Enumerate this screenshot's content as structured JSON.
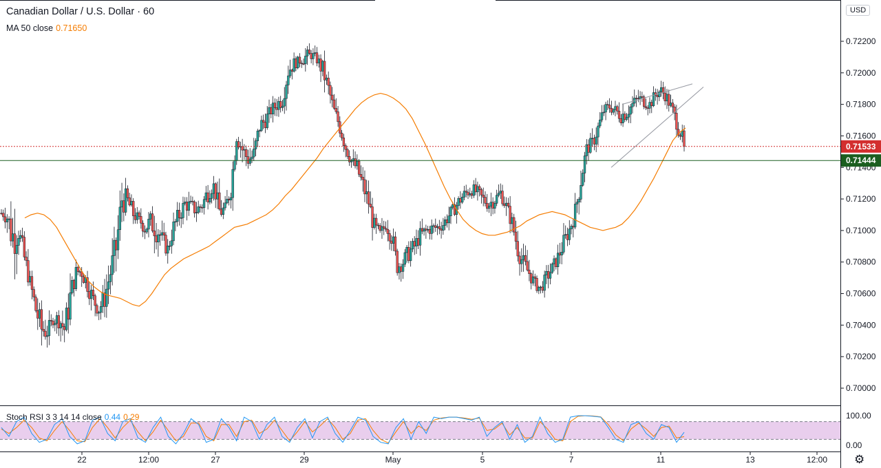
{
  "header": {
    "symbol_title": "Canadian Dollar / U.S. Dollar · 60",
    "ma_label": "MA 50 close",
    "ma_value": "0.71650",
    "stoch_label": "Stoch RSI 3 3 14 14 close",
    "stoch_k": "0.44",
    "stoch_d": "0.29",
    "currency_badge": "USD"
  },
  "icons": {
    "settings": "gear-icon"
  },
  "colors": {
    "up_candle": "#26a69a",
    "down_candle": "#ef5350",
    "ma_line": "#f57c00",
    "current_price_line": "#d32f2f",
    "support_line": "#1b5e20",
    "stoch_k": "#2196f3",
    "stoch_d": "#f57c00",
    "stoch_band": "#e1bee7"
  },
  "chart_data": {
    "type": "candlestick",
    "symbol": "CADUSD",
    "interval": "60",
    "y_axis_ticks": [
      "0.72200",
      "0.72000",
      "0.71800",
      "0.71600",
      "0.71400",
      "0.71200",
      "0.71000",
      "0.70800",
      "0.70600",
      "0.70400",
      "0.70200",
      "0.70000"
    ],
    "ylim": [
      0.6994,
      0.7233
    ],
    "x_axis_ticks": [
      "22",
      "12:00",
      "27",
      "29",
      "May",
      "5",
      "7",
      "11",
      "13",
      "12:00"
    ],
    "price_labels": {
      "current": "0.71533",
      "support": "0.71444"
    },
    "current_price": 0.71533,
    "support_level": 0.71444,
    "price_path": [
      [
        0.711,
        0.7112
      ],
      [
        0.7102,
        0.7115
      ],
      [
        0.708,
        0.7112
      ],
      [
        0.7092,
        0.7108
      ],
      [
        0.7075,
        0.709
      ],
      [
        0.7062,
        0.7072
      ],
      [
        0.7042,
        0.7058
      ],
      [
        0.7028,
        0.7047
      ],
      [
        0.703,
        0.7042
      ],
      [
        0.704,
        0.7046
      ],
      [
        0.7038,
        0.705
      ],
      [
        0.703,
        0.7045
      ],
      [
        0.7046,
        0.7068
      ],
      [
        0.707,
        0.7078
      ],
      [
        0.7068,
        0.708
      ],
      [
        0.706,
        0.7072
      ],
      [
        0.705,
        0.7062
      ],
      [
        0.7045,
        0.7055
      ],
      [
        0.705,
        0.7065
      ],
      [
        0.7065,
        0.7082
      ],
      [
        0.7078,
        0.71
      ],
      [
        0.711,
        0.713
      ],
      [
        0.7112,
        0.7125
      ],
      [
        0.7105,
        0.7116
      ],
      [
        0.7104,
        0.711
      ],
      [
        0.7096,
        0.7108
      ],
      [
        0.7098,
        0.7112
      ],
      [
        0.7092,
        0.7115
      ],
      [
        0.7088,
        0.71
      ],
      [
        0.7083,
        0.7093
      ],
      [
        0.7096,
        0.7108
      ],
      [
        0.7104,
        0.7116
      ],
      [
        0.7112,
        0.7122
      ],
      [
        0.711,
        0.712
      ],
      [
        0.7108,
        0.7118
      ],
      [
        0.7112,
        0.712
      ],
      [
        0.7118,
        0.7132
      ],
      [
        0.7125,
        0.7132
      ],
      [
        0.7105,
        0.712
      ],
      [
        0.7108,
        0.7118
      ],
      [
        0.712,
        0.7135
      ],
      [
        0.7155,
        0.7165
      ],
      [
        0.7145,
        0.7158
      ],
      [
        0.714,
        0.715
      ],
      [
        0.714,
        0.7155
      ],
      [
        0.716,
        0.7172
      ],
      [
        0.7165,
        0.7175
      ],
      [
        0.7172,
        0.718
      ],
      [
        0.7175,
        0.7185
      ],
      [
        0.7178,
        0.7188
      ],
      [
        0.7195,
        0.7208
      ],
      [
        0.7202,
        0.721
      ],
      [
        0.7205,
        0.721
      ],
      [
        0.7205,
        0.7215
      ],
      [
        0.7208,
        0.7215
      ],
      [
        0.7205,
        0.7212
      ],
      [
        0.7195,
        0.7208
      ],
      [
        0.7185,
        0.7195
      ],
      [
        0.7172,
        0.718
      ],
      [
        0.716,
        0.7172
      ],
      [
        0.7148,
        0.7158
      ],
      [
        0.714,
        0.7148
      ],
      [
        0.7134,
        0.7145
      ],
      [
        0.7122,
        0.7135
      ],
      [
        0.7112,
        0.7124
      ],
      [
        0.7095,
        0.7108
      ],
      [
        0.7092,
        0.7102
      ],
      [
        0.71,
        0.7108
      ],
      [
        0.709,
        0.7105
      ],
      [
        0.7072,
        0.7082
      ],
      [
        0.7075,
        0.7085
      ],
      [
        0.708,
        0.7092
      ],
      [
        0.7085,
        0.7095
      ],
      [
        0.7092,
        0.7102
      ],
      [
        0.7095,
        0.7104
      ],
      [
        0.7098,
        0.7105
      ],
      [
        0.7098,
        0.7106
      ],
      [
        0.71,
        0.7108
      ],
      [
        0.7105,
        0.7114
      ],
      [
        0.711,
        0.7118
      ],
      [
        0.7115,
        0.7125
      ],
      [
        0.712,
        0.7128
      ],
      [
        0.7122,
        0.713
      ],
      [
        0.712,
        0.7128
      ],
      [
        0.7115,
        0.7124
      ],
      [
        0.7112,
        0.7122
      ],
      [
        0.7115,
        0.7124
      ],
      [
        0.712,
        0.7128
      ],
      [
        0.711,
        0.712
      ],
      [
        0.71,
        0.711
      ],
      [
        0.7082,
        0.7095
      ],
      [
        0.7072,
        0.7085
      ],
      [
        0.7068,
        0.7078
      ],
      [
        0.7062,
        0.707
      ],
      [
        0.706,
        0.7066
      ],
      [
        0.7065,
        0.7075
      ],
      [
        0.7072,
        0.708
      ],
      [
        0.7078,
        0.7088
      ],
      [
        0.7086,
        0.7098
      ],
      [
        0.7096,
        0.7105
      ],
      [
        0.7105,
        0.7118
      ],
      [
        0.7125,
        0.714
      ],
      [
        0.7148,
        0.7156
      ],
      [
        0.715,
        0.716
      ],
      [
        0.716,
        0.717
      ],
      [
        0.7172,
        0.718
      ],
      [
        0.7175,
        0.7182
      ],
      [
        0.7172,
        0.718
      ],
      [
        0.7168,
        0.7178
      ],
      [
        0.717,
        0.718
      ],
      [
        0.7176,
        0.7184
      ],
      [
        0.718,
        0.7188
      ],
      [
        0.7178,
        0.7186
      ],
      [
        0.7176,
        0.7184
      ],
      [
        0.7182,
        0.719
      ],
      [
        0.7186,
        0.7192
      ],
      [
        0.718,
        0.7188
      ],
      [
        0.7172,
        0.718
      ],
      [
        0.716,
        0.717
      ],
      [
        0.7153,
        0.716
      ]
    ],
    "ma_path": [
      0.7108,
      0.711,
      0.7111,
      0.711,
      0.7107,
      0.7102,
      0.7095,
      0.7088,
      0.7081,
      0.7074,
      0.7068,
      0.7064,
      0.7061,
      0.7059,
      0.7058,
      0.7057,
      0.7055,
      0.7053,
      0.7052,
      0.7055,
      0.706,
      0.7066,
      0.7072,
      0.7076,
      0.7079,
      0.7082,
      0.7084,
      0.7086,
      0.7088,
      0.709,
      0.7093,
      0.7096,
      0.7099,
      0.7102,
      0.7103,
      0.7104,
      0.7106,
      0.7108,
      0.711,
      0.7113,
      0.7117,
      0.7122,
      0.7126,
      0.7131,
      0.7136,
      0.7141,
      0.7146,
      0.7152,
      0.7157,
      0.7162,
      0.7167,
      0.7172,
      0.7177,
      0.7181,
      0.7184,
      0.7186,
      0.7187,
      0.7186,
      0.7184,
      0.7181,
      0.7177,
      0.7171,
      0.7163,
      0.7155,
      0.7146,
      0.7137,
      0.7128,
      0.712,
      0.7113,
      0.7107,
      0.7103,
      0.71,
      0.7098,
      0.7097,
      0.7097,
      0.7098,
      0.7099,
      0.7101,
      0.7103,
      0.7106,
      0.7108,
      0.711,
      0.7111,
      0.7112,
      0.7111,
      0.711,
      0.7108,
      0.7106,
      0.7104,
      0.7102,
      0.7101,
      0.71,
      0.7101,
      0.7102,
      0.7104,
      0.7108,
      0.7113,
      0.7119,
      0.7126,
      0.7133,
      0.7141,
      0.7149,
      0.7157,
      0.7162,
      0.7165
    ],
    "wedge_upper": [
      [
        0.718,
        0.7193
      ],
      [
        0.7184,
        0.72
      ]
    ],
    "wedge_lower": [
      [
        0.714,
        0.7158
      ],
      [
        0.7162,
        0.7191
      ]
    ],
    "stoch_rsi": {
      "label": "Stoch RSI 3 3 14 14 close",
      "k": 0.44,
      "d": 0.29,
      "ticks": [
        "100.00",
        "0.00"
      ],
      "band": [
        20,
        80
      ],
      "k_path": [
        60,
        30,
        80,
        95,
        40,
        10,
        20,
        70,
        90,
        30,
        5,
        15,
        85,
        95,
        40,
        15,
        80,
        90,
        25,
        10,
        60,
        95,
        30,
        5,
        40,
        90,
        70,
        10,
        20,
        90,
        60,
        15,
        95,
        80,
        20,
        70,
        95,
        30,
        10,
        60,
        90,
        25,
        80,
        95,
        40,
        10,
        50,
        95,
        85,
        30,
        10,
        5,
        60,
        90,
        20,
        80,
        40,
        95,
        90,
        95,
        95,
        90,
        85,
        95,
        30,
        60,
        80,
        20,
        70,
        10,
        30,
        95,
        40,
        10,
        20,
        95,
        100,
        100,
        98,
        95,
        60,
        20,
        10,
        70,
        80,
        40,
        20,
        70,
        60,
        10,
        44
      ],
      "d_path": [
        55,
        40,
        60,
        85,
        60,
        25,
        15,
        50,
        80,
        50,
        15,
        12,
        60,
        90,
        60,
        25,
        60,
        85,
        45,
        15,
        45,
        85,
        50,
        15,
        30,
        75,
        75,
        30,
        15,
        70,
        70,
        30,
        80,
        85,
        40,
        55,
        85,
        50,
        15,
        45,
        80,
        45,
        65,
        90,
        60,
        20,
        40,
        85,
        90,
        50,
        20,
        8,
        45,
        80,
        40,
        65,
        50,
        85,
        92,
        95,
        95,
        92,
        88,
        92,
        50,
        55,
        75,
        35,
        60,
        25,
        25,
        80,
        55,
        20,
        15,
        80,
        98,
        100,
        99,
        96,
        70,
        35,
        15,
        55,
        75,
        55,
        30,
        60,
        65,
        25,
        29
      ]
    }
  }
}
